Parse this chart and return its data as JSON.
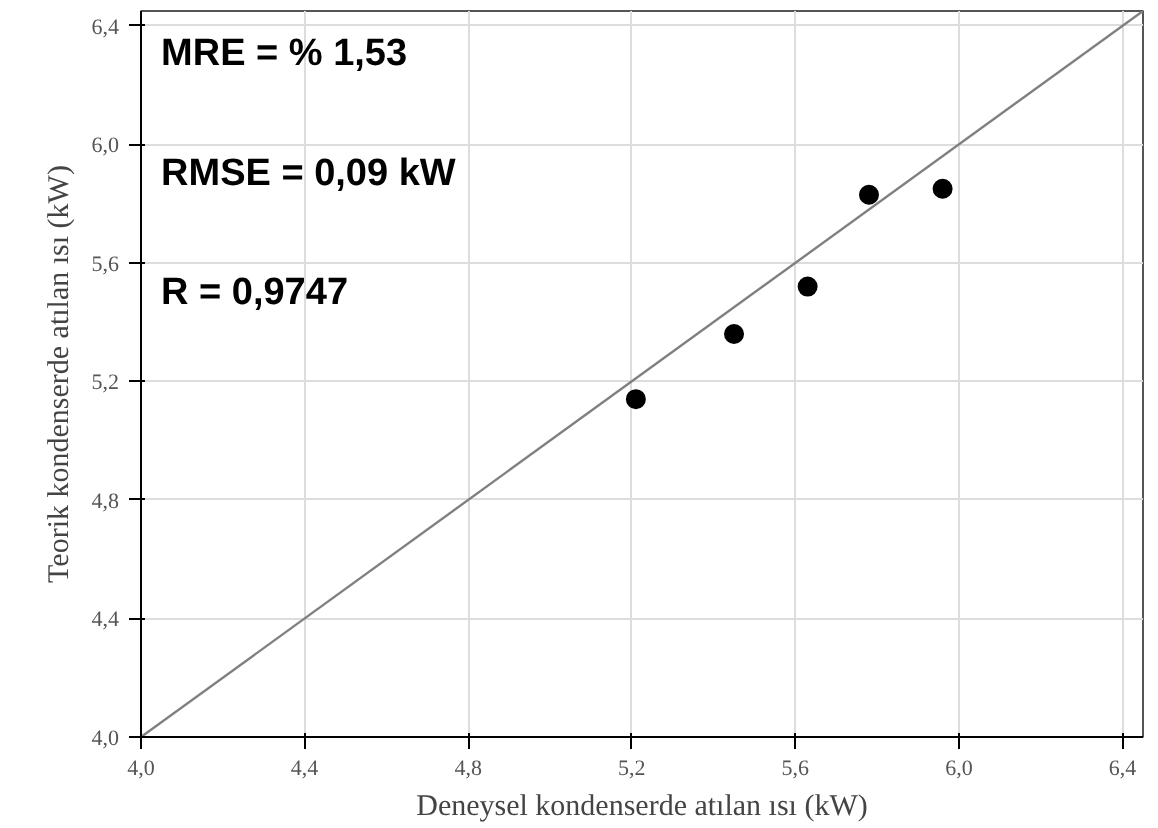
{
  "chart_data": {
    "type": "scatter",
    "xlabel": "Deneysel kondenserde atılan ısı (kW)",
    "ylabel": "Teorik kondenserde atılan ısı (kW)",
    "xlim": [
      4.0,
      6.45
    ],
    "ylim": [
      4.0,
      6.45
    ],
    "xticks": [
      {
        "value": 4.0,
        "label": "4,0"
      },
      {
        "value": 4.4,
        "label": "4,4"
      },
      {
        "value": 4.8,
        "label": "4,8"
      },
      {
        "value": 5.2,
        "label": "5,2"
      },
      {
        "value": 5.6,
        "label": "5,6"
      },
      {
        "value": 6.0,
        "label": "6,0"
      },
      {
        "value": 6.4,
        "label": "6,4"
      }
    ],
    "yticks": [
      {
        "value": 4.0,
        "label": "4,0"
      },
      {
        "value": 4.4,
        "label": "4,4"
      },
      {
        "value": 4.8,
        "label": "4,8"
      },
      {
        "value": 5.2,
        "label": "5,2"
      },
      {
        "value": 5.6,
        "label": "5,6"
      },
      {
        "value": 6.0,
        "label": "6,0"
      },
      {
        "value": 6.4,
        "label": "6,4"
      }
    ],
    "grid": true,
    "series": [
      {
        "marker": "circle",
        "color": "#000000",
        "x": [
          5.21,
          5.45,
          5.63,
          5.78,
          5.96
        ],
        "values": [
          5.14,
          5.36,
          5.52,
          5.83,
          5.85
        ]
      },
      {
        "type": "line",
        "color": "#808080",
        "x": [
          4.0,
          6.45
        ],
        "values": [
          4.0,
          6.45
        ]
      }
    ],
    "annotations": [
      "MRE = % 1,53",
      "RMSE = 0,09 kW",
      "R = 0,9747"
    ]
  }
}
